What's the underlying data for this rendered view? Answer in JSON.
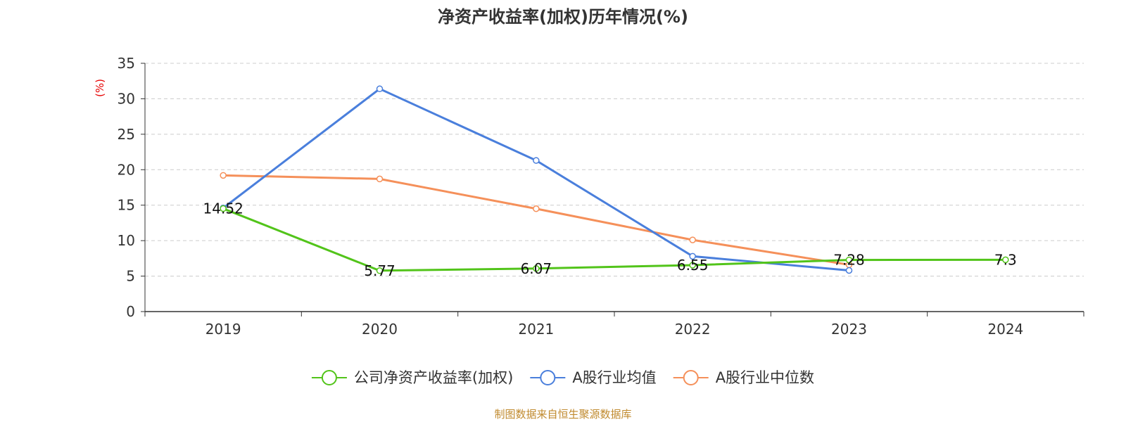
{
  "chart_data": {
    "type": "line",
    "title": "净资产收益率(加权)历年情况(%)",
    "ylabel": "(%)",
    "xlabel": "",
    "categories": [
      "2019",
      "2020",
      "2021",
      "2022",
      "2023",
      "2024"
    ],
    "ylim": [
      0,
      35
    ],
    "yticks": [
      0,
      5,
      10,
      15,
      20,
      25,
      30,
      35
    ],
    "grid": true,
    "legend_position": "bottom",
    "series": [
      {
        "name": "公司净资产收益率(加权)",
        "color": "#52c41a",
        "values": [
          14.52,
          5.77,
          6.07,
          6.55,
          7.28,
          7.3
        ],
        "labels": [
          "14.52",
          "5.77",
          "6.07",
          "6.55",
          "7.28",
          "7.3"
        ]
      },
      {
        "name": "A股行业均值",
        "color": "#4a7fdc",
        "values": [
          14.6,
          31.4,
          21.3,
          7.8,
          5.8,
          null
        ]
      },
      {
        "name": "A股行业中位数",
        "color": "#f5905a",
        "values": [
          19.2,
          18.7,
          14.5,
          10.1,
          6.6,
          null
        ]
      }
    ]
  },
  "footer": {
    "source": "制图数据来自恒生聚源数据库"
  }
}
